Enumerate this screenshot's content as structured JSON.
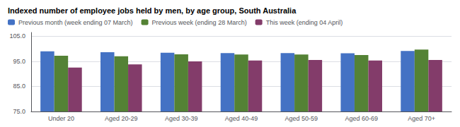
{
  "chart_data": {
    "type": "bar",
    "title": "Indexed number of employee jobs held by men, by age group, South Australia",
    "categories": [
      "Under 20",
      "Aged 20-29",
      "Aged 30-39",
      "Aged 40-49",
      "Aged 50-59",
      "Aged 60-69",
      "Aged 70+"
    ],
    "series": [
      {
        "name": "Previous month (week ending 07 March)",
        "color": "#4472C4",
        "values": [
          99.0,
          98.6,
          98.4,
          98.3,
          98.3,
          98.2,
          99.1
        ]
      },
      {
        "name": "Previous week (ending 28 March)",
        "color": "#548235",
        "values": [
          97.2,
          97.0,
          97.8,
          97.7,
          97.7,
          97.5,
          99.7
        ]
      },
      {
        "name": "This week (ending 04 April)",
        "color": "#833C6A",
        "values": [
          92.5,
          93.8,
          95.0,
          95.3,
          95.5,
          95.3,
          95.5
        ]
      }
    ],
    "ylim": [
      75.0,
      106.5
    ],
    "yticks": [
      {
        "value": 75.0,
        "label": "75.0"
      },
      {
        "value": 85.0,
        "label": "85.0"
      },
      {
        "value": 95.0,
        "label": "95.0"
      },
      {
        "value": 105.0,
        "label": "105.0"
      }
    ],
    "grid": true,
    "legend": "upper left"
  }
}
